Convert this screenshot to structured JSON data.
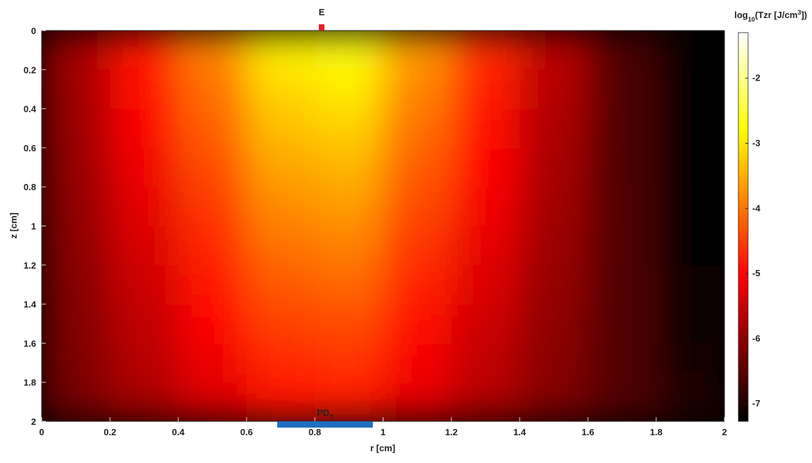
{
  "chart_data": {
    "type": "heatmap",
    "xlabel": "r [cm]",
    "ylabel": "z [cm]",
    "xlim": [
      0,
      2
    ],
    "ylim": [
      0,
      2
    ],
    "y_reversed": true,
    "xticks": [
      0,
      0.2,
      0.4,
      0.6,
      0.8,
      1,
      1.2,
      1.4,
      1.6,
      1.8,
      2
    ],
    "yticks": [
      0,
      0.2,
      0.4,
      0.6,
      0.8,
      1,
      1.2,
      1.4,
      1.6,
      1.8,
      2
    ],
    "xbins": [
      0,
      0.2,
      0.4,
      0.6,
      0.8,
      1,
      1.2,
      1.4,
      1.6,
      1.8,
      2
    ],
    "ybins": [
      0,
      0.2,
      0.4,
      0.6,
      0.8,
      1,
      1.2,
      1.4,
      1.6,
      1.8,
      2
    ],
    "z": [
      [
        -5.82,
        -4.85,
        -3.88,
        -2.91,
        -2.72,
        -3.69,
        -4.66,
        -5.63,
        -6.6,
        -7.3
      ],
      [
        -5.87,
        -4.96,
        -4.05,
        -3.14,
        -2.95,
        -3.86,
        -4.77,
        -5.68,
        -6.59,
        -7.3
      ],
      [
        -5.91,
        -5.06,
        -4.21,
        -3.36,
        -3.19,
        -4.04,
        -4.89,
        -5.74,
        -6.59,
        -7.3
      ],
      [
        -5.95,
        -5.16,
        -4.37,
        -3.58,
        -3.43,
        -4.22,
        -5.01,
        -5.8,
        -6.59,
        -7.3
      ],
      [
        -6.0,
        -5.27,
        -4.54,
        -3.81,
        -3.66,
        -4.39,
        -5.12,
        -5.85,
        -6.58,
        -7.3
      ],
      [
        -6.04,
        -5.37,
        -4.7,
        -4.03,
        -3.9,
        -4.57,
        -5.24,
        -5.91,
        -6.58,
        -7.25
      ],
      [
        -6.09,
        -5.48,
        -4.87,
        -4.26,
        -4.13,
        -4.74,
        -5.35,
        -5.96,
        -6.57,
        -7.18
      ],
      [
        -6.13,
        -5.58,
        -5.03,
        -4.48,
        -4.37,
        -4.92,
        -5.47,
        -6.02,
        -6.57,
        -7.12
      ],
      [
        -6.17,
        -5.68,
        -5.19,
        -4.7,
        -4.61,
        -5.1,
        -5.59,
        -6.08,
        -6.57,
        -7.06
      ],
      [
        -6.22,
        -5.79,
        -5.36,
        -4.93,
        -4.84,
        -5.27,
        -5.7,
        -6.13,
        -6.56,
        -6.99
      ]
    ],
    "colormap": "hot",
    "clim": [
      -7.27,
      -1.3
    ],
    "cticks": [
      -2,
      -3,
      -4,
      -5,
      -6,
      -7
    ],
    "colorbar_label": [
      {
        "text": "log"
      },
      {
        "text": "10",
        "shift": "sub"
      },
      {
        "text": "(Tzr [J/cm"
      },
      {
        "text": "3",
        "shift": "super"
      },
      {
        "text": "])"
      }
    ],
    "markers": [
      {
        "label": [
          {
            "text": "E"
          }
        ],
        "x": 0.82,
        "y": 0,
        "color": "#e0202a"
      },
      {
        "label": [
          {
            "text": "PD"
          },
          {
            "text": "T",
            "shift": "sub"
          }
        ],
        "x": [
          0.69,
          0.97
        ],
        "y": 2,
        "color": "#1f6fc0"
      }
    ]
  }
}
